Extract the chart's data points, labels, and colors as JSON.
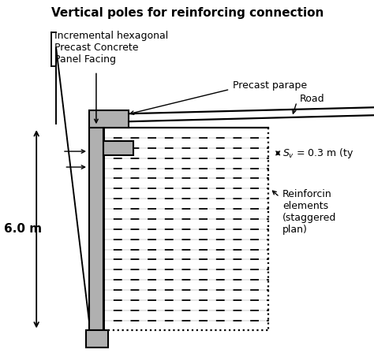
{
  "bg_color": "#ffffff",
  "title": "Vertical poles for reinforcing connection",
  "label_incremental": "Incremental hexagonal\nPrecast Concrete\nPanel Facing",
  "label_parapet": "Precast parape",
  "label_road": "Road",
  "label_sv": "$S_v$ = 0.3 m (ty",
  "label_reinforcing": "Reinforcin\nelements\n(staggered\nplan)",
  "label_6m": "6.0 m",
  "font_size_title": 11,
  "font_size_label": 9,
  "gray_color": "#b0b0b0",
  "line_color": "#000000"
}
